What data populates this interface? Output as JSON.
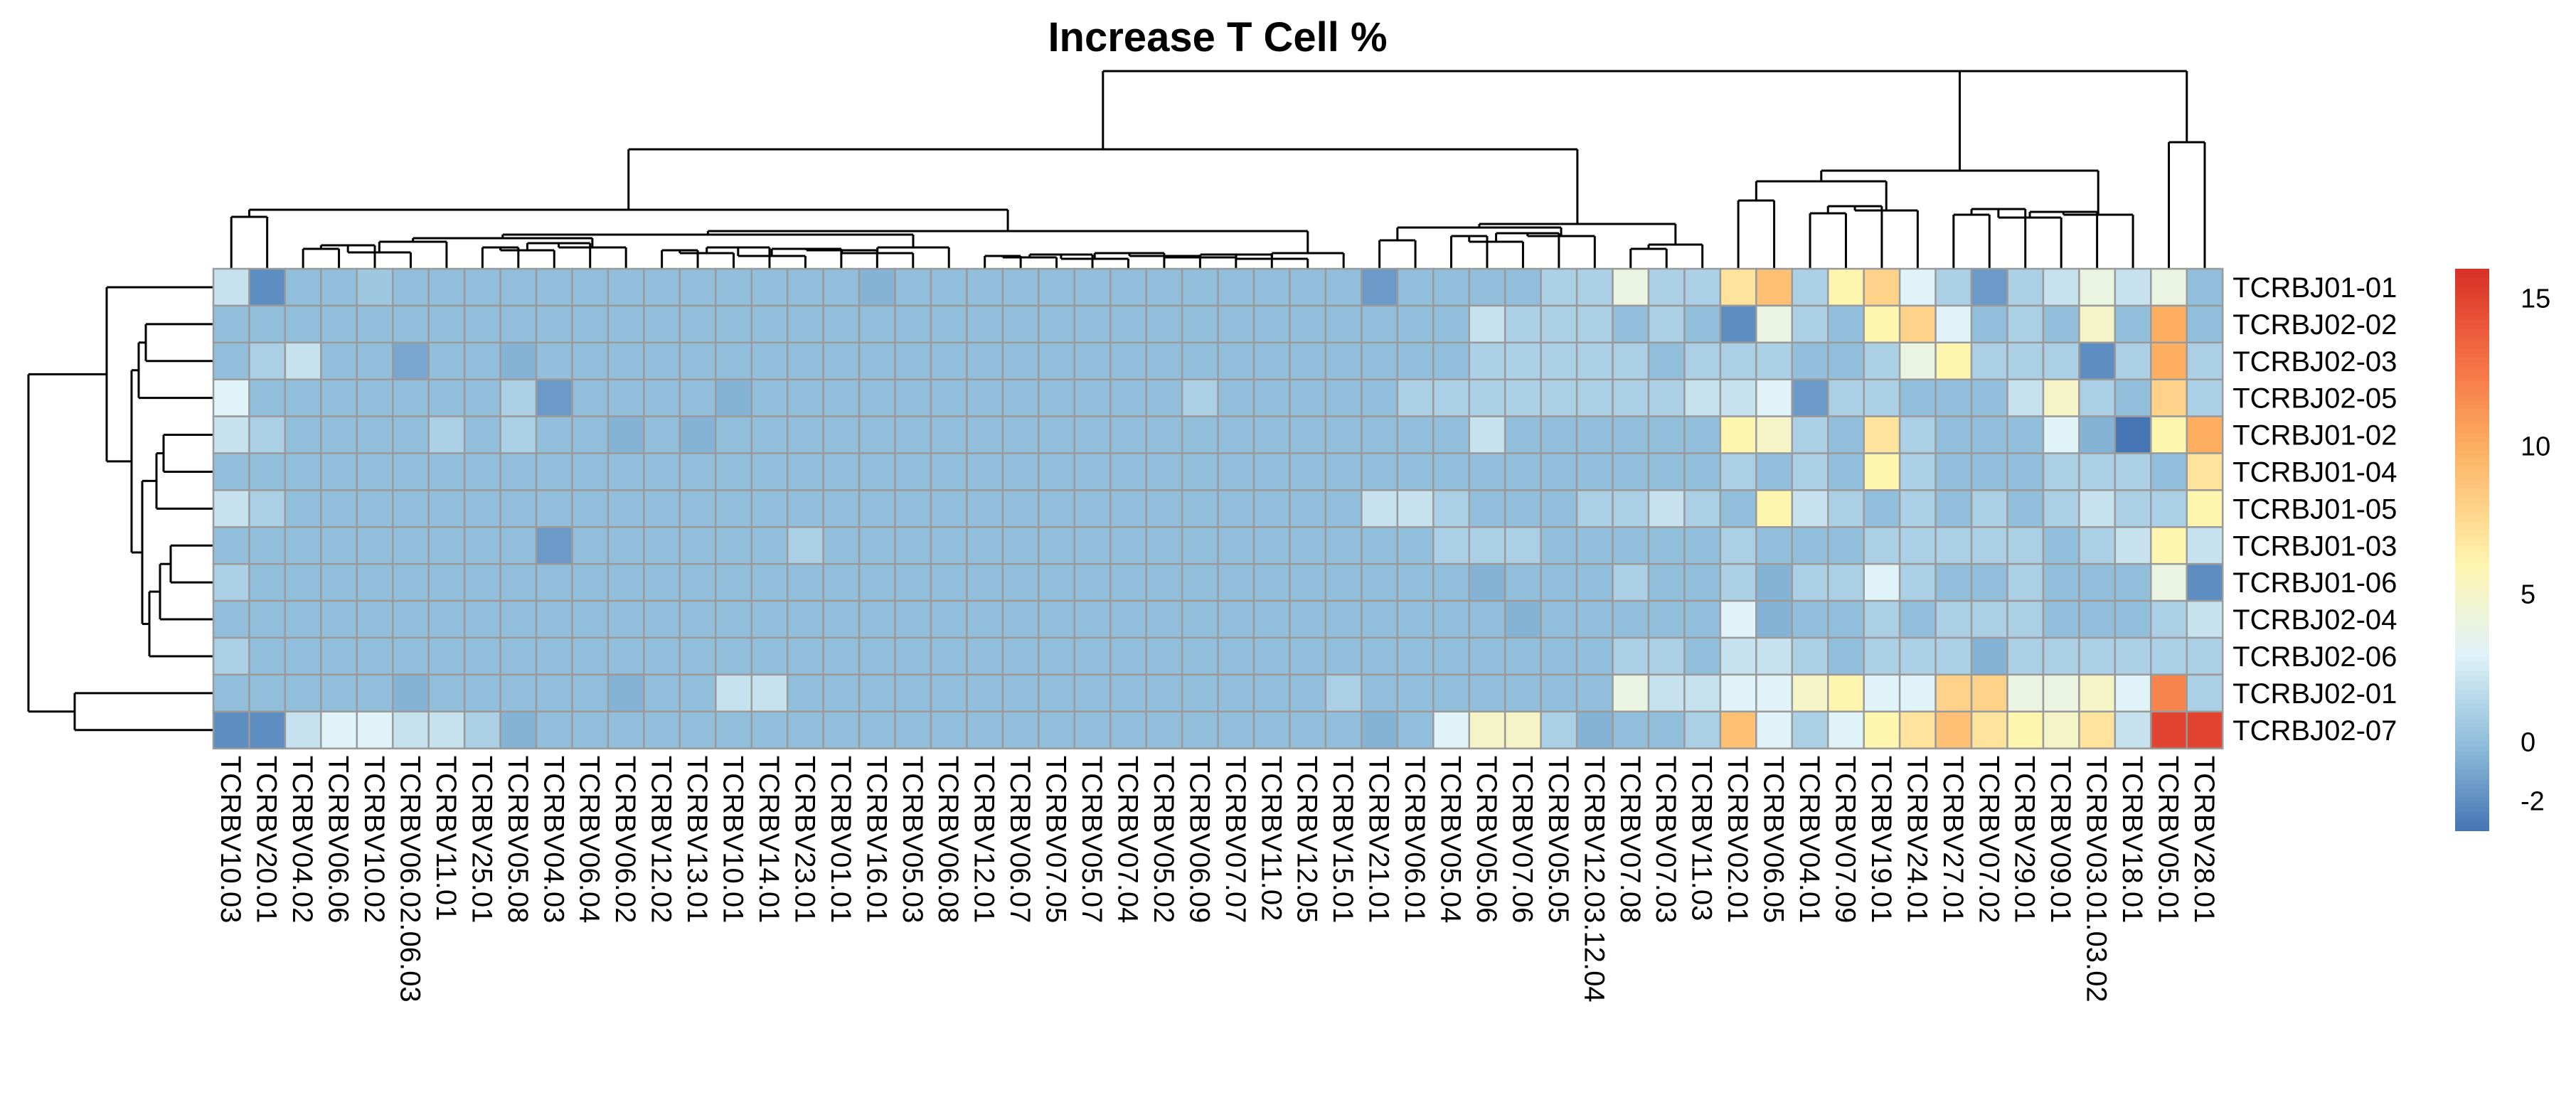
{
  "chart_data": {
    "type": "heatmap",
    "title": "Increase T Cell %",
    "columns": [
      "TCRBV10.03",
      "TCRBV20.01",
      "TCRBV04.02",
      "TCRBV06.06",
      "TCRBV10.02",
      "TCRBV06.02.06.03",
      "TCRBV11.01",
      "TCRBV25.01",
      "TCRBV05.08",
      "TCRBV04.03",
      "TCRBV06.04",
      "TCRBV06.02",
      "TCRBV12.02",
      "TCRBV13.01",
      "TCRBV10.01",
      "TCRBV14.01",
      "TCRBV23.01",
      "TCRBV01.01",
      "TCRBV16.01",
      "TCRBV05.03",
      "TCRBV06.08",
      "TCRBV12.01",
      "TCRBV06.07",
      "TCRBV07.05",
      "TCRBV05.07",
      "TCRBV07.04",
      "TCRBV05.02",
      "TCRBV06.09",
      "TCRBV07.07",
      "TCRBV11.02",
      "TCRBV12.05",
      "TCRBV15.01",
      "TCRBV21.01",
      "TCRBV06.01",
      "TCRBV05.04",
      "TCRBV05.06",
      "TCRBV07.06",
      "TCRBV05.05",
      "TCRBV12.03.12.04",
      "TCRBV07.08",
      "TCRBV07.03",
      "TCRBV11.03",
      "TCRBV02.01",
      "TCRBV06.05",
      "TCRBV04.01",
      "TCRBV07.09",
      "TCRBV19.01",
      "TCRBV24.01",
      "TCRBV27.01",
      "TCRBV07.02",
      "TCRBV29.01",
      "TCRBV09.01",
      "TCRBV03.01.03.02",
      "TCRBV18.01",
      "TCRBV05.01",
      "TCRBV28.01"
    ],
    "rows": [
      "TCRBJ01-01",
      "TCRBJ02-02",
      "TCRBJ02-03",
      "TCRBJ02-05",
      "TCRBJ01-02",
      "TCRBJ01-04",
      "TCRBJ01-05",
      "TCRBJ01-03",
      "TCRBJ01-06",
      "TCRBJ02-04",
      "TCRBJ02-06",
      "TCRBJ02-01",
      "TCRBJ02-07"
    ],
    "values": [
      [
        2,
        -2,
        0,
        0,
        0.5,
        0,
        0,
        0,
        0,
        0,
        0,
        0,
        0,
        0,
        0,
        0,
        0,
        0,
        -0.5,
        0,
        0,
        0,
        0,
        0,
        0,
        0,
        0,
        0,
        0,
        0,
        0,
        0,
        -1.5,
        0,
        0,
        0,
        0,
        1,
        1,
        4,
        1,
        1,
        7,
        9,
        1,
        6,
        8,
        3,
        1,
        -1.5,
        1,
        2,
        4,
        2,
        4,
        0
      ],
      [
        0,
        0,
        0,
        0,
        0,
        0,
        0,
        0,
        0,
        0,
        0,
        0,
        0,
        0,
        0,
        0,
        0,
        0,
        0,
        0,
        0,
        0,
        0,
        0,
        0,
        0,
        0,
        0,
        0,
        0,
        0,
        0,
        0,
        0,
        0,
        2,
        1,
        1,
        1,
        0,
        1,
        0,
        -2,
        4,
        1,
        0,
        6,
        8,
        3,
        0,
        1,
        0,
        5,
        0,
        10,
        0
      ],
      [
        0,
        1,
        2,
        0,
        0,
        -1,
        0,
        0,
        -0.5,
        0,
        0,
        0,
        0,
        0,
        0,
        0,
        0,
        0,
        0,
        0,
        0,
        0,
        0,
        0,
        0,
        0,
        0,
        0,
        0,
        0,
        0,
        0,
        0,
        0,
        0,
        1,
        1,
        1,
        1,
        1,
        0,
        1,
        1,
        1,
        0,
        0,
        1,
        4,
        6,
        1,
        1,
        1,
        -2,
        1,
        10,
        1
      ],
      [
        3,
        0,
        0,
        0,
        0,
        0,
        0,
        0,
        1,
        -1.5,
        0,
        0,
        0,
        0,
        -0.5,
        0,
        0,
        0,
        0,
        0,
        0,
        0,
        0,
        0,
        0,
        0,
        0,
        1,
        0,
        0,
        0,
        0,
        0,
        1,
        1,
        1,
        1,
        1,
        1,
        1,
        1,
        2,
        2,
        3,
        -1.5,
        1,
        1,
        0,
        0,
        0,
        2,
        5,
        1,
        0,
        8,
        1
      ],
      [
        2,
        1,
        0,
        0,
        0,
        0,
        1,
        0,
        1,
        0,
        0,
        -0.5,
        0,
        -0.5,
        0,
        0,
        0,
        0,
        0,
        0,
        0,
        0,
        0,
        0,
        0,
        0,
        0,
        0,
        0,
        0,
        0,
        0,
        0,
        0,
        0,
        2,
        0,
        0,
        0,
        0,
        0,
        0,
        6,
        5,
        1,
        0,
        7,
        1,
        0,
        0,
        0,
        3,
        -0.5,
        -3,
        6,
        10
      ],
      [
        0,
        0,
        0,
        0,
        0,
        0,
        0,
        0,
        0,
        0,
        0,
        0,
        0,
        0,
        0,
        0,
        0,
        0,
        0,
        0,
        0,
        0,
        0,
        0,
        0,
        0,
        0,
        0,
        0,
        0,
        0,
        0,
        0,
        0,
        0,
        0,
        0,
        0,
        0,
        0,
        0,
        0,
        1,
        0,
        1,
        0,
        6,
        1,
        0,
        0,
        0,
        1,
        1,
        1,
        0,
        7
      ],
      [
        2,
        1,
        0,
        0,
        0,
        0,
        0,
        0,
        0,
        0,
        0,
        0,
        0,
        0,
        0,
        0,
        0,
        0,
        0,
        0,
        0,
        0,
        0,
        0,
        0,
        0,
        0,
        0,
        0,
        0,
        0,
        0,
        2,
        2,
        1,
        0,
        0,
        0,
        1,
        1,
        2,
        1,
        0,
        6,
        2,
        1,
        0,
        1,
        0,
        1,
        0,
        1,
        2,
        1,
        1,
        6
      ],
      [
        0,
        0,
        0,
        0,
        0,
        0,
        0,
        0,
        0,
        -1.5,
        0,
        0,
        0,
        0,
        0,
        0,
        1,
        0,
        0,
        0,
        0,
        0,
        0,
        0,
        0,
        0,
        0,
        0,
        0,
        0,
        0,
        0,
        0,
        0,
        1,
        1,
        1,
        0,
        0,
        0,
        0,
        0,
        1,
        0,
        0,
        0,
        1,
        1,
        1,
        1,
        1,
        0,
        1,
        2,
        6,
        2
      ],
      [
        1,
        0,
        0,
        0,
        0,
        0,
        0,
        0,
        0,
        0,
        0,
        0,
        0,
        0,
        0,
        0,
        0,
        0,
        0,
        0,
        0,
        0,
        0,
        0,
        0,
        0,
        0,
        0,
        0,
        0,
        0,
        0,
        0,
        0,
        0,
        -0.5,
        0,
        0,
        0,
        1,
        0,
        0,
        1,
        -0.5,
        1,
        1,
        3,
        1,
        0,
        0,
        1,
        0,
        0,
        0,
        4,
        -2
      ],
      [
        0,
        0,
        0,
        0,
        0,
        0,
        0,
        0,
        0,
        0,
        0,
        0,
        0,
        0,
        0,
        0,
        0,
        0,
        0,
        0,
        0,
        0,
        0,
        0,
        0,
        0,
        0,
        0,
        0,
        0,
        0,
        0,
        0,
        0,
        0,
        0,
        -0.5,
        0,
        0,
        0,
        0,
        0,
        3,
        -0.5,
        0,
        0,
        1,
        0,
        1,
        1,
        1,
        0,
        0,
        0,
        1,
        2
      ],
      [
        1,
        0,
        0,
        0,
        0,
        0,
        0,
        0,
        0,
        0,
        0,
        0,
        0,
        0,
        0,
        0,
        0,
        0,
        0,
        0,
        0,
        0,
        0,
        0,
        0,
        0,
        0,
        0,
        0,
        0,
        0,
        0,
        0,
        0,
        0,
        0,
        0,
        0,
        0,
        1,
        1,
        0,
        2,
        2,
        1,
        0,
        1,
        1,
        1,
        -0.5,
        1,
        1,
        1,
        1,
        1,
        1
      ],
      [
        0,
        0,
        0,
        0,
        0,
        -0.5,
        0,
        0,
        0,
        0,
        0,
        -0.5,
        0,
        0,
        2,
        2,
        0,
        0,
        0,
        0,
        0,
        0,
        0,
        0,
        0,
        0,
        0,
        0,
        0,
        0,
        0,
        1,
        0,
        0,
        0,
        0,
        0,
        0,
        0,
        4,
        2,
        2,
        3,
        3,
        5,
        6,
        3,
        3,
        8,
        8,
        4,
        4,
        5,
        3,
        12,
        1
      ],
      [
        -2,
        -2,
        2,
        3,
        3,
        2,
        2,
        1,
        -0.5,
        0,
        0,
        0,
        0,
        0,
        0,
        0,
        0,
        0,
        0,
        0,
        0,
        0,
        0,
        0,
        0,
        0,
        0,
        0,
        0,
        0,
        0,
        0,
        -0.5,
        0,
        3,
        5,
        5,
        1,
        -0.5,
        0,
        0,
        1,
        9,
        3,
        1,
        3,
        6,
        7,
        9,
        7,
        6,
        5,
        7,
        2,
        15,
        15
      ]
    ],
    "legend": {
      "ticks": [
        15,
        10,
        5,
        0,
        -2
      ],
      "min": -3,
      "max": 16
    }
  }
}
